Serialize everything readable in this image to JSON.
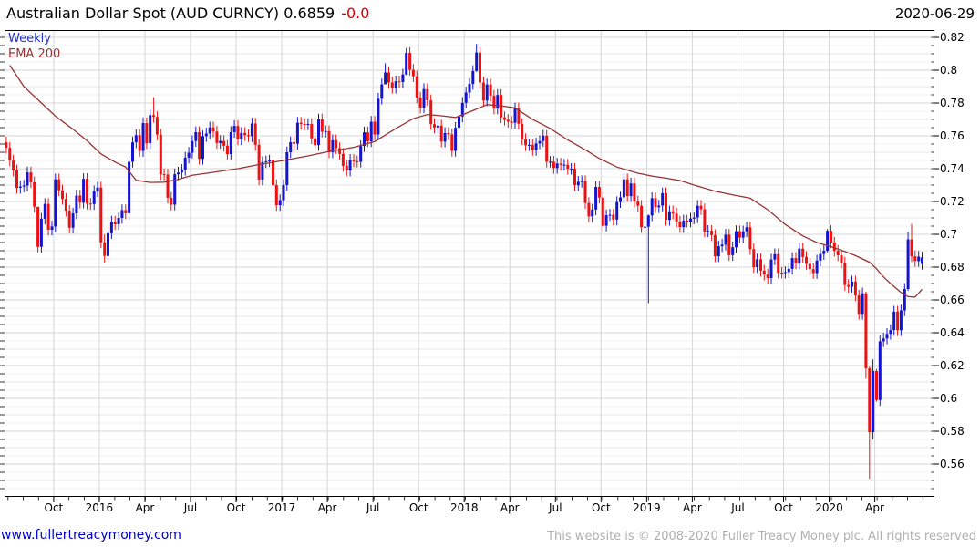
{
  "header": {
    "title": "Australian Dollar Spot (AUD CURNCY) 0.6859",
    "change": "-0.0",
    "date": "2020-06-29"
  },
  "legend": {
    "series_label": "Weekly",
    "overlay_label": "EMA 200"
  },
  "footer": {
    "link": "www.fullertreacymoney.com",
    "copyright": "This website is © 2008-2020 Fuller Treacy Money plc. All rights reserved"
  },
  "colors": {
    "up_candle": "#1414cc",
    "down_candle": "#ee1111",
    "ema_line": "#993333",
    "title_change": "#dd0000",
    "legend_weekly": "#2230cc",
    "legend_ema": "#993333",
    "grid_major": "#d6d6d6",
    "grid_mid": "#e6e6e6",
    "grid_minor": "#f1f1f1",
    "axis": "#000000",
    "link": "#0000cc",
    "copyright": "#b0b0b0"
  },
  "chart_data": {
    "type": "candlestick",
    "timeframe": "weekly",
    "title": "Australian Dollar Spot (AUD CURNCY)",
    "last_price": 0.6859,
    "date_range": "2015-06-29 to 2020-06-29",
    "ylim": [
      0.54,
      0.8244
    ],
    "grid": {
      "major_step": 0.02,
      "mid_step": 0.01,
      "minor_step": 0.005,
      "vertical": "quarterly"
    },
    "legend_position": "top-left",
    "y_ticks": [
      {
        "value": 0.82,
        "label": "0.82"
      },
      {
        "value": 0.8,
        "label": "0.8"
      },
      {
        "value": 0.78,
        "label": "0.78"
      },
      {
        "value": 0.76,
        "label": "0.76"
      },
      {
        "value": 0.74,
        "label": "0.74"
      },
      {
        "value": 0.72,
        "label": "0.72"
      },
      {
        "value": 0.7,
        "label": "0.7"
      },
      {
        "value": 0.68,
        "label": "0.68"
      },
      {
        "value": 0.66,
        "label": "0.66"
      },
      {
        "value": 0.64,
        "label": "0.64"
      },
      {
        "value": 0.62,
        "label": "0.62"
      },
      {
        "value": 0.6,
        "label": "0.6"
      },
      {
        "value": 0.58,
        "label": "0.58"
      },
      {
        "value": 0.56,
        "label": "0.56"
      }
    ],
    "x_ticks": [
      {
        "label": "Oct",
        "week": 14
      },
      {
        "label": "2016",
        "week": 27
      },
      {
        "label": "Apr",
        "week": 40
      },
      {
        "label": "Jul",
        "week": 53
      },
      {
        "label": "Oct",
        "week": 66
      },
      {
        "label": "2017",
        "week": 79
      },
      {
        "label": "Apr",
        "week": 92
      },
      {
        "label": "Jul",
        "week": 105
      },
      {
        "label": "Oct",
        "week": 118
      },
      {
        "label": "2018",
        "week": 131
      },
      {
        "label": "Apr",
        "week": 144
      },
      {
        "label": "Jul",
        "week": 157
      },
      {
        "label": "Oct",
        "week": 170
      },
      {
        "label": "2019",
        "week": 183
      },
      {
        "label": "Apr",
        "week": 196
      },
      {
        "label": "Jul",
        "week": 209
      },
      {
        "label": "Oct",
        "week": 222
      },
      {
        "label": "2020",
        "week": 235
      },
      {
        "label": "Apr",
        "week": 248
      }
    ],
    "total_slots": 265,
    "first_open": 0.756,
    "default_wick": 0.0035,
    "weekly_closes": [
      0.7527,
      0.7449,
      0.7389,
      0.7283,
      0.7291,
      0.7297,
      0.7377,
      0.7317,
      0.7168,
      0.6924,
      0.7095,
      0.7185,
      0.7028,
      0.7048,
      0.7335,
      0.7268,
      0.7216,
      0.7144,
      0.704,
      0.7127,
      0.7236,
      0.7193,
      0.7338,
      0.7187,
      0.7184,
      0.7262,
      0.7285,
      0.6951,
      0.6868,
      0.7007,
      0.7078,
      0.7061,
      0.71,
      0.7147,
      0.7128,
      0.7442,
      0.756,
      0.7604,
      0.7508,
      0.7677,
      0.7555,
      0.7726,
      0.7715,
      0.7608,
      0.7366,
      0.7364,
      0.7223,
      0.7181,
      0.7366,
      0.7376,
      0.7392,
      0.7467,
      0.7497,
      0.7568,
      0.7622,
      0.746,
      0.7598,
      0.7614,
      0.7651,
      0.7626,
      0.7556,
      0.7569,
      0.754,
      0.7489,
      0.7623,
      0.766,
      0.7579,
      0.7618,
      0.7604,
      0.7597,
      0.7675,
      0.7545,
      0.7334,
      0.744,
      0.7445,
      0.745,
      0.73,
      0.7178,
      0.7208,
      0.73,
      0.75,
      0.7561,
      0.7552,
      0.768,
      0.7672,
      0.767,
      0.7672,
      0.7585,
      0.7544,
      0.77,
      0.7625,
      0.7629,
      0.75,
      0.7573,
      0.7525,
      0.749,
      0.7417,
      0.7389,
      0.7454,
      0.7445,
      0.7442,
      0.7538,
      0.7621,
      0.7567,
      0.7686,
      0.7608,
      0.7826,
      0.7914,
      0.7986,
      0.7925,
      0.7893,
      0.7932,
      0.7928,
      0.7974,
      0.8105,
      0.8002,
      0.7963,
      0.7833,
      0.7772,
      0.7885,
      0.7816,
      0.7671,
      0.7651,
      0.7662,
      0.7565,
      0.7617,
      0.7609,
      0.7509,
      0.7649,
      0.7718,
      0.7801,
      0.7864,
      0.7916,
      0.7995,
      0.8108,
      0.7925,
      0.7815,
      0.7913,
      0.7845,
      0.7766,
      0.7849,
      0.7713,
      0.7697,
      0.7686,
      0.7679,
      0.7767,
      0.7673,
      0.758,
      0.7543,
      0.7545,
      0.7514,
      0.7554,
      0.7568,
      0.7601,
      0.7442,
      0.7442,
      0.7404,
      0.7431,
      0.7423,
      0.7424,
      0.7399,
      0.7399,
      0.7299,
      0.732,
      0.7324,
      0.7191,
      0.7109,
      0.7151,
      0.7289,
      0.7224,
      0.7052,
      0.7116,
      0.7119,
      0.709,
      0.7196,
      0.7225,
      0.7335,
      0.7233,
      0.731,
      0.72,
      0.7174,
      0.7044,
      0.7046,
      0.7115,
      0.722,
      0.7165,
      0.7175,
      0.725,
      0.7088,
      0.714,
      0.7126,
      0.7077,
      0.7044,
      0.7084,
      0.7077,
      0.7096,
      0.7103,
      0.7174,
      0.7153,
      0.7017,
      0.7021,
      0.6995,
      0.6866,
      0.6927,
      0.6937,
      0.6998,
      0.6873,
      0.6921,
      0.7019,
      0.698,
      0.7018,
      0.7043,
      0.691,
      0.68,
      0.6848,
      0.6779,
      0.6755,
      0.6733,
      0.6846,
      0.6879,
      0.6766,
      0.6765,
      0.677,
      0.679,
      0.6855,
      0.6822,
      0.6913,
      0.6862,
      0.682,
      0.6788,
      0.6764,
      0.684,
      0.688,
      0.69,
      0.7021,
      0.695,
      0.69,
      0.6872,
      0.6827,
      0.6691,
      0.668,
      0.6712,
      0.6627,
      0.6515,
      0.664,
      0.6183,
      0.5794,
      0.6167,
      0.599,
      0.6348,
      0.6365,
      0.6393,
      0.6416,
      0.6529,
      0.6415,
      0.6536,
      0.6667,
      0.6969,
      0.6866,
      0.6837,
      0.6864,
      0.6859
    ],
    "open_overrides": {
      "0": 0.756,
      "261": 0.682
    },
    "wick_overrides": {
      "9": [
        0.713,
        0.689
      ],
      "28": [
        0.7,
        0.6827
      ],
      "42": [
        0.7835,
        0.768
      ],
      "108": [
        0.8042,
        0.792
      ],
      "114": [
        0.8135,
        0.797
      ],
      "134": [
        0.816,
        0.799
      ],
      "183": [
        0.712,
        0.658
      ],
      "234": [
        0.7032,
        0.689
      ],
      "245": [
        0.665,
        0.612
      ],
      "246": [
        0.6195,
        0.551
      ],
      "247": [
        0.6238,
        0.575
      ],
      "248": [
        0.618,
        0.598
      ],
      "257": [
        0.7015,
        0.6655
      ],
      "258": [
        0.7064,
        0.6832
      ]
    },
    "ema200": [
      [
        1,
        0.803
      ],
      [
        5,
        0.79
      ],
      [
        9,
        0.782
      ],
      [
        14,
        0.772
      ],
      [
        19,
        0.764
      ],
      [
        23,
        0.757
      ],
      [
        27,
        0.749
      ],
      [
        31,
        0.744
      ],
      [
        34,
        0.741
      ],
      [
        37,
        0.733
      ],
      [
        41,
        0.7316
      ],
      [
        45,
        0.7318
      ],
      [
        49,
        0.7335
      ],
      [
        53,
        0.736
      ],
      [
        59,
        0.7378
      ],
      [
        66,
        0.74
      ],
      [
        72,
        0.7425
      ],
      [
        79,
        0.745
      ],
      [
        86,
        0.7478
      ],
      [
        92,
        0.7505
      ],
      [
        99,
        0.753
      ],
      [
        105,
        0.7565
      ],
      [
        111,
        0.7645
      ],
      [
        116,
        0.7705
      ],
      [
        120,
        0.773
      ],
      [
        124,
        0.7722
      ],
      [
        128,
        0.7712
      ],
      [
        132,
        0.7745
      ],
      [
        137,
        0.779
      ],
      [
        141,
        0.7783
      ],
      [
        145,
        0.777
      ],
      [
        150,
        0.77
      ],
      [
        155,
        0.7645
      ],
      [
        160,
        0.7575
      ],
      [
        165,
        0.7515
      ],
      [
        169,
        0.7462
      ],
      [
        174,
        0.741
      ],
      [
        180,
        0.7372
      ],
      [
        184,
        0.7355
      ],
      [
        188,
        0.7342
      ],
      [
        192,
        0.7328
      ],
      [
        196,
        0.73
      ],
      [
        202,
        0.7262
      ],
      [
        207,
        0.724
      ],
      [
        212,
        0.722
      ],
      [
        217,
        0.715
      ],
      [
        222,
        0.706
      ],
      [
        227,
        0.699
      ],
      [
        231,
        0.695
      ],
      [
        235,
        0.6925
      ],
      [
        239,
        0.6895
      ],
      [
        242,
        0.687
      ],
      [
        244,
        0.685
      ],
      [
        246,
        0.683
      ],
      [
        248,
        0.679
      ],
      [
        250,
        0.674
      ],
      [
        252,
        0.67
      ],
      [
        255,
        0.6645
      ],
      [
        257,
        0.662
      ],
      [
        259,
        0.6618
      ],
      [
        261,
        0.6665
      ]
    ]
  }
}
